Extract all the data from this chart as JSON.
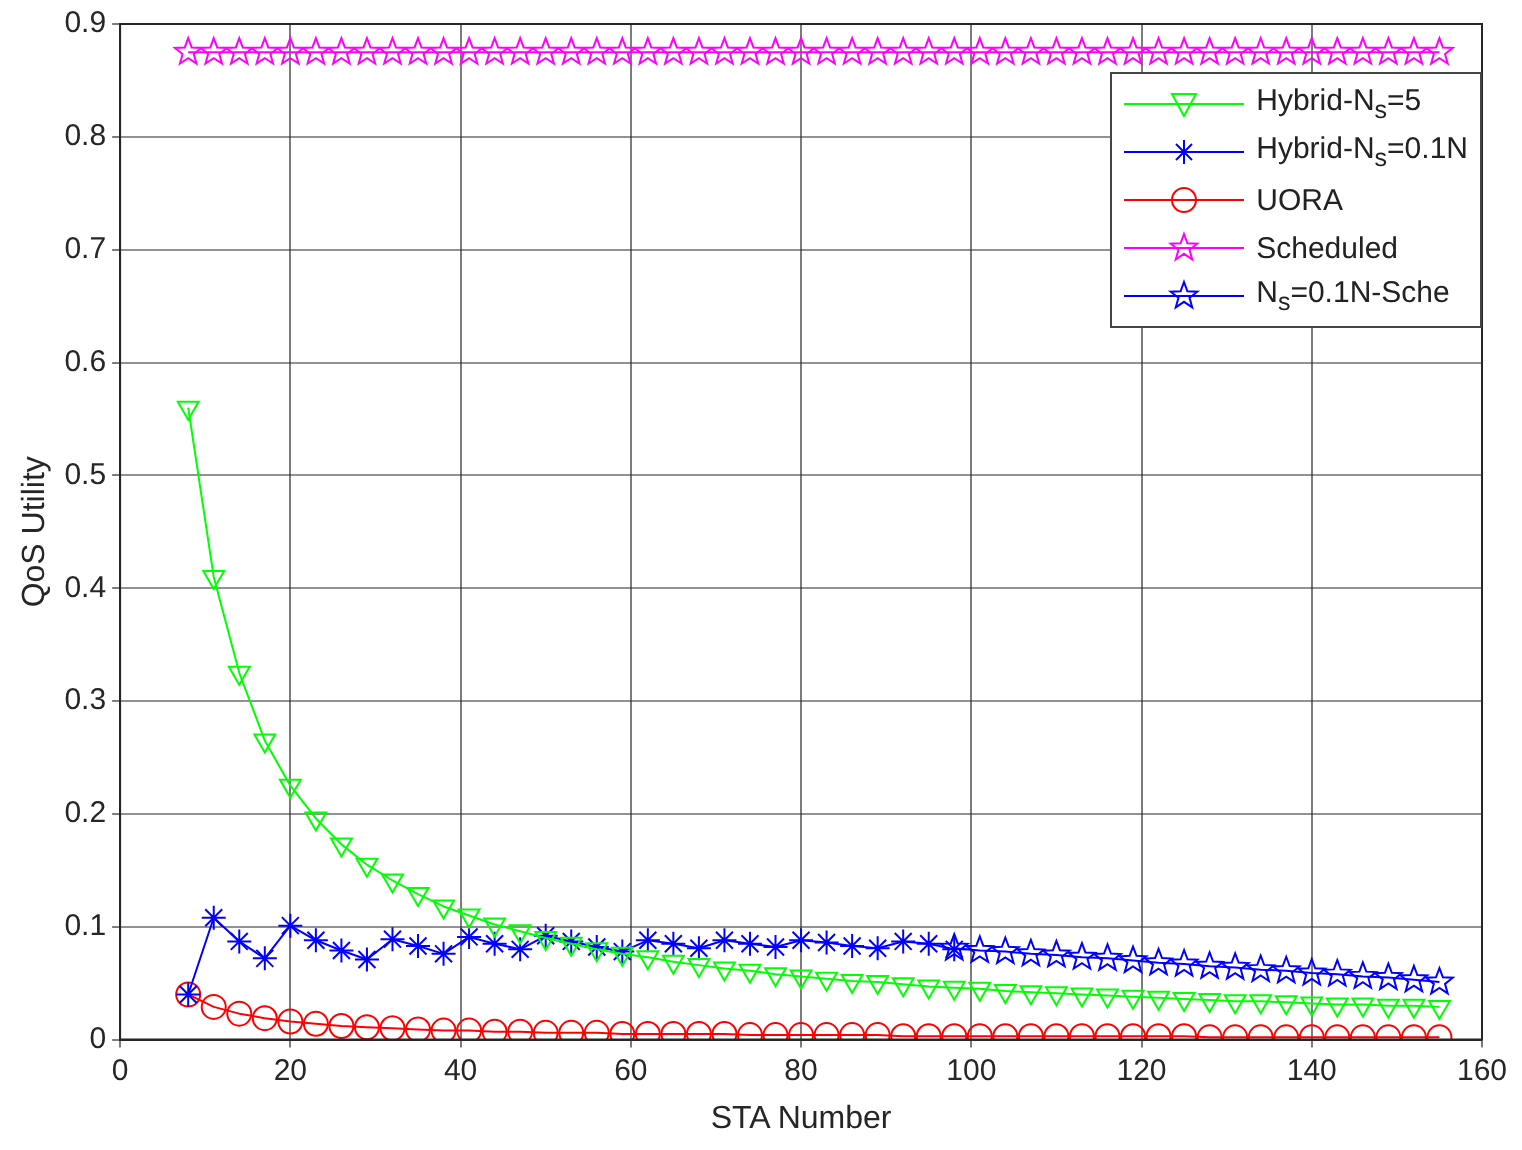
{
  "chart_data": {
    "type": "line",
    "xlabel": "STA Number",
    "ylabel": "QoS Utility",
    "x": [
      8,
      11,
      14,
      17,
      20,
      23,
      26,
      29,
      32,
      35,
      38,
      41,
      44,
      47,
      50,
      53,
      56,
      59,
      62,
      65,
      68,
      71,
      74,
      77,
      80,
      83,
      86,
      89,
      92,
      95,
      98,
      101,
      104,
      107,
      110,
      113,
      116,
      119,
      122,
      125,
      128,
      131,
      134,
      137,
      140,
      143,
      146,
      149,
      152,
      155
    ],
    "series": [
      {
        "name": "Hybrid-N$_{s}$=5",
        "color": "#00ff00",
        "marker": "triangle",
        "values": [
          0.56,
          0.41,
          0.325,
          0.265,
          0.225,
          0.196,
          0.173,
          0.155,
          0.141,
          0.129,
          0.118,
          0.11,
          0.102,
          0.096,
          0.09,
          0.085,
          0.08,
          0.076,
          0.073,
          0.069,
          0.066,
          0.063,
          0.061,
          0.058,
          0.056,
          0.054,
          0.052,
          0.051,
          0.049,
          0.047,
          0.046,
          0.045,
          0.043,
          0.042,
          0.041,
          0.04,
          0.039,
          0.038,
          0.037,
          0.036,
          0.035,
          0.034,
          0.034,
          0.033,
          0.032,
          0.031,
          0.031,
          0.03,
          0.03,
          0.029
        ]
      },
      {
        "name": "Hybrid-N$_{s}$=0.1N",
        "color": "#0000ff",
        "marker": "cross",
        "values": [
          0.04,
          0.108,
          0.087,
          0.072,
          0.101,
          0.088,
          0.079,
          0.071,
          0.089,
          0.083,
          0.076,
          0.091,
          0.085,
          0.08,
          0.092,
          0.087,
          0.082,
          0.078,
          0.088,
          0.085,
          0.081,
          0.088,
          0.085,
          0.082,
          0.088,
          0.086,
          0.083,
          0.081,
          0.087,
          0.085,
          0.08,
          null,
          null,
          null,
          null,
          null,
          null,
          null,
          null,
          null,
          null,
          null,
          null,
          null,
          null,
          null,
          null,
          null,
          null,
          null
        ]
      },
      {
        "name": "UORA",
        "color": "#ff0000",
        "marker": "circle",
        "values": [
          0.04,
          0.029,
          0.023,
          0.019,
          0.016,
          0.014,
          0.012,
          0.011,
          0.01,
          0.009,
          0.008,
          0.008,
          0.007,
          0.007,
          0.006,
          0.006,
          0.006,
          0.005,
          0.005,
          0.005,
          0.005,
          0.005,
          0.004,
          0.004,
          0.004,
          0.004,
          0.004,
          0.004,
          0.003,
          0.003,
          0.003,
          0.003,
          0.003,
          0.003,
          0.003,
          0.003,
          0.003,
          0.003,
          0.003,
          0.003,
          0.002,
          0.002,
          0.002,
          0.002,
          0.002,
          0.002,
          0.002,
          0.002,
          0.002,
          0.002
        ]
      },
      {
        "name": "Scheduled",
        "color": "#ff00ff",
        "marker": "star",
        "values": [
          0.875,
          0.875,
          0.875,
          0.875,
          0.875,
          0.875,
          0.875,
          0.875,
          0.875,
          0.875,
          0.875,
          0.875,
          0.875,
          0.875,
          0.875,
          0.875,
          0.875,
          0.875,
          0.875,
          0.875,
          0.875,
          0.875,
          0.875,
          0.875,
          0.875,
          0.875,
          0.875,
          0.875,
          0.875,
          0.875,
          0.875,
          0.875,
          0.875,
          0.875,
          0.875,
          0.875,
          0.875,
          0.875,
          0.875,
          0.875,
          0.875,
          0.875,
          0.875,
          0.875,
          0.875,
          0.875,
          0.875,
          0.875,
          0.875,
          0.875
        ]
      },
      {
        "name": "N$_{s}$=0.1N-Sche",
        "color": "#0000ff",
        "marker": "star",
        "values": [
          null,
          null,
          null,
          null,
          null,
          null,
          null,
          null,
          null,
          null,
          null,
          null,
          null,
          null,
          null,
          null,
          null,
          null,
          null,
          null,
          null,
          null,
          null,
          null,
          null,
          null,
          null,
          null,
          null,
          null,
          0.081,
          0.079,
          0.078,
          0.076,
          0.075,
          0.073,
          0.072,
          0.07,
          0.068,
          0.067,
          0.065,
          0.064,
          0.062,
          0.061,
          0.059,
          0.058,
          0.056,
          0.055,
          0.053,
          0.051
        ]
      }
    ],
    "xlim": [
      0,
      160
    ],
    "xticks": [
      0,
      20,
      40,
      60,
      80,
      100,
      120,
      140,
      160
    ],
    "ylim": [
      0,
      0.9
    ],
    "yticks": [
      0,
      0.1,
      0.2,
      0.3,
      0.4,
      0.5,
      0.6,
      0.7,
      0.8,
      0.9
    ],
    "grid": true,
    "legend": "top right",
    "line_style": "solid"
  }
}
